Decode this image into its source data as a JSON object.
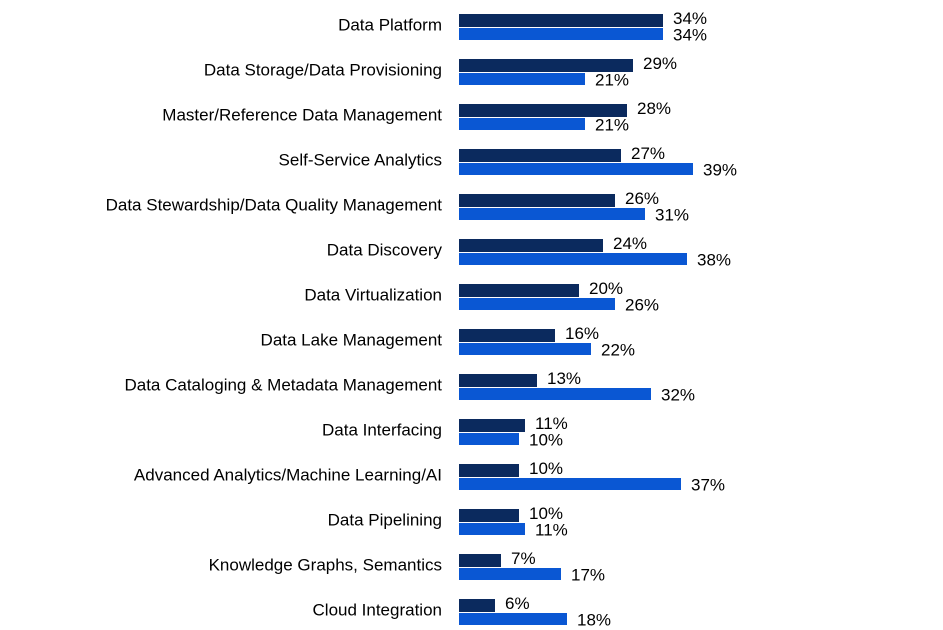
{
  "chart_data": {
    "type": "bar",
    "orientation": "horizontal",
    "categories": [
      "Data Platform",
      "Data Storage/Data Provisioning",
      "Master/Reference Data Management",
      "Self-Service Analytics",
      "Data Stewardship/Data Quality Management",
      "Data Discovery",
      "Data Virtualization",
      "Data Lake Management",
      "Data Cataloging & Metadata Management",
      "Data Interfacing",
      "Advanced Analytics/Machine Learning/AI",
      "Data Pipelining",
      "Knowledge Graphs, Semantics",
      "Cloud Integration"
    ],
    "series": [
      {
        "color": "#0b2a5e",
        "values": [
          34,
          29,
          28,
          27,
          26,
          24,
          20,
          16,
          13,
          11,
          10,
          10,
          7,
          6
        ],
        "value_labels": [
          "34%",
          "29%",
          "28%",
          "27%",
          "26%",
          "24%",
          "20%",
          "16%",
          "13%",
          "11%",
          "10%",
          "10%",
          "7%",
          "6%"
        ]
      },
      {
        "color": "#0a57d3",
        "values": [
          34,
          21,
          21,
          39,
          31,
          38,
          26,
          22,
          32,
          10,
          37,
          11,
          17,
          18
        ],
        "value_labels": [
          "34%",
          "21%",
          "21%",
          "39%",
          "31%",
          "38%",
          "26%",
          "22%",
          "32%",
          "10%",
          "37%",
          "11%",
          "17%",
          "18%"
        ]
      }
    ]
  }
}
